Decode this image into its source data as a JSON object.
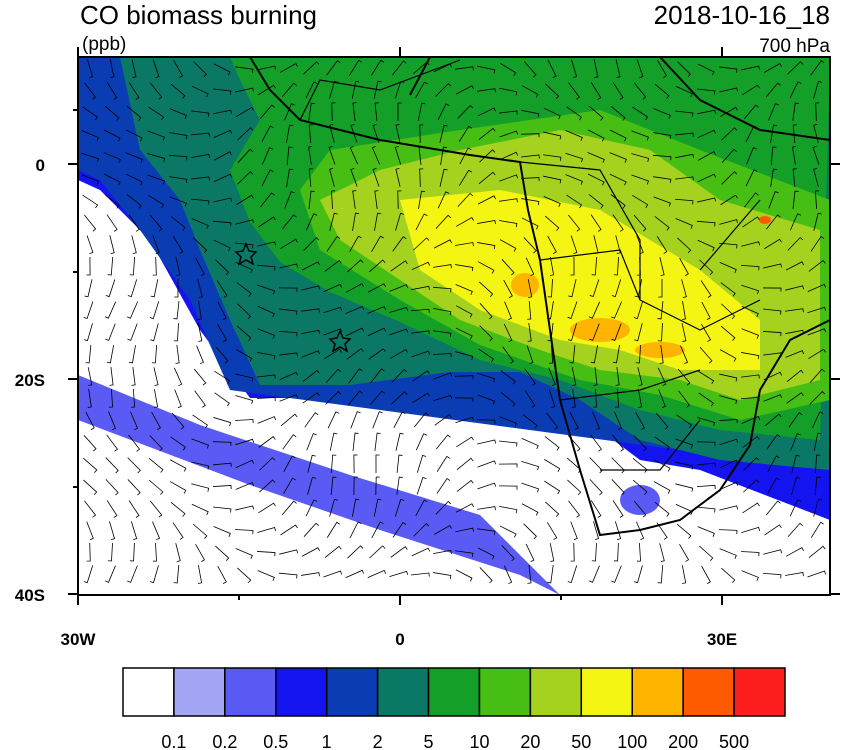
{
  "header": {
    "title": "CO biomass burning",
    "units": "(ppb)",
    "time": "2018-10-16_18",
    "level": "700 hPa"
  },
  "map": {
    "lat_labels": [
      "0",
      "20S",
      "40S"
    ],
    "lon_labels": [
      "30W",
      "0",
      "30E"
    ]
  },
  "colorbar": {
    "colors": [
      "#ffffff",
      "#a5a5f5",
      "#5a5af5",
      "#1414f0",
      "#0a3cb4",
      "#0a7864",
      "#14a028",
      "#46be14",
      "#a5d21e",
      "#f5f514",
      "#ffb400",
      "#ff5a00",
      "#ff1e1e"
    ],
    "labels": [
      "0.1",
      "0.2",
      "0.5",
      "1",
      "2",
      "5",
      "10",
      "20",
      "50",
      "100",
      "200",
      "500"
    ]
  }
}
